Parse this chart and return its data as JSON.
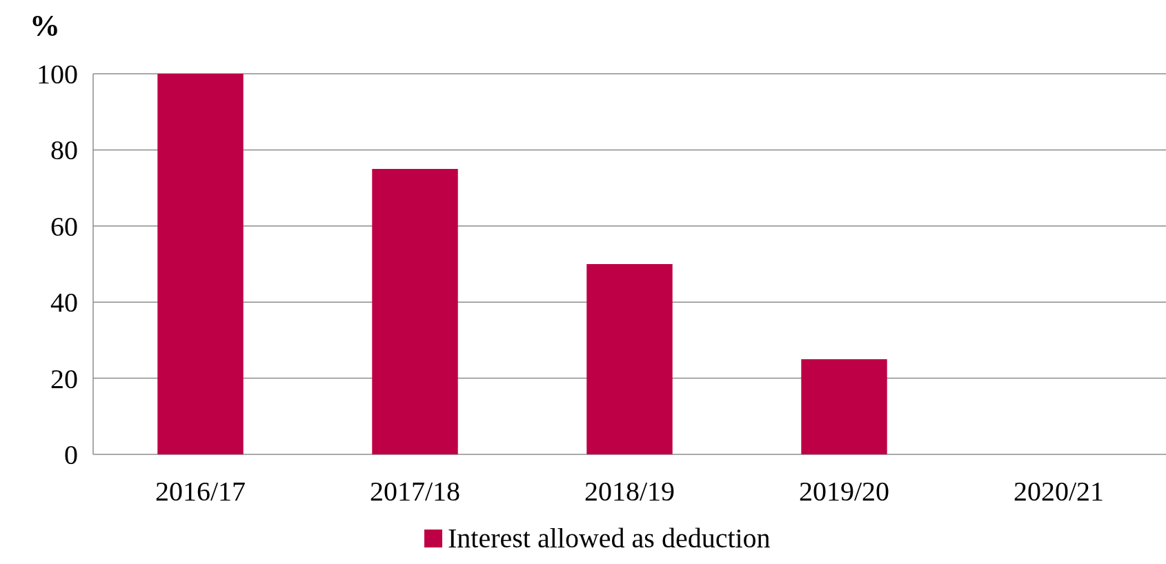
{
  "chart_data": {
    "type": "bar",
    "ylabel": "%",
    "categories": [
      "2016/17",
      "2017/18",
      "2018/19",
      "2019/20",
      "2020/21"
    ],
    "series": [
      {
        "name": "Interest allowed as deduction",
        "color": "#be0046",
        "values": [
          100,
          75,
          50,
          25,
          0
        ]
      }
    ],
    "ylim": [
      0,
      100
    ],
    "yticks": [
      0,
      20,
      40,
      60,
      80,
      100
    ],
    "grid": "y",
    "legend": "bottom"
  }
}
